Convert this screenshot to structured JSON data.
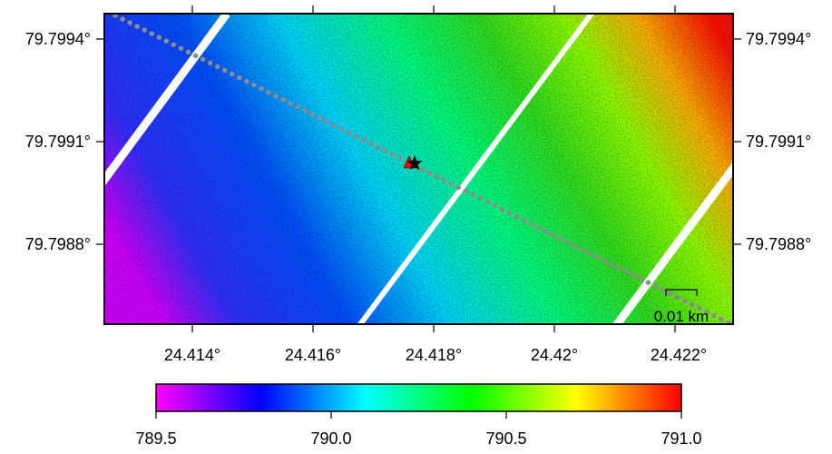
{
  "map": {
    "type": "heatmap",
    "lon_ticks": [
      "24.414°",
      "24.416°",
      "24.418°",
      "24.42°",
      "24.422°"
    ],
    "lat_ticks": [
      "79.7994°",
      "79.7991°",
      "79.7988°"
    ],
    "scale_bar_label": "0.01 km",
    "markers": [
      {
        "kind": "triangle",
        "color": "#ff0000"
      },
      {
        "kind": "star",
        "color": "#000000"
      }
    ],
    "track_color": "#8c8c8c"
  },
  "colorbar": {
    "min": 789.5,
    "max": 791.0,
    "tick_labels": [
      "789.5",
      "790.0",
      "790.5",
      "791.0"
    ],
    "colors": [
      "#ff00ff",
      "#0000ff",
      "#00ffff",
      "#00ff00",
      "#ffff00",
      "#ff0000"
    ]
  }
}
